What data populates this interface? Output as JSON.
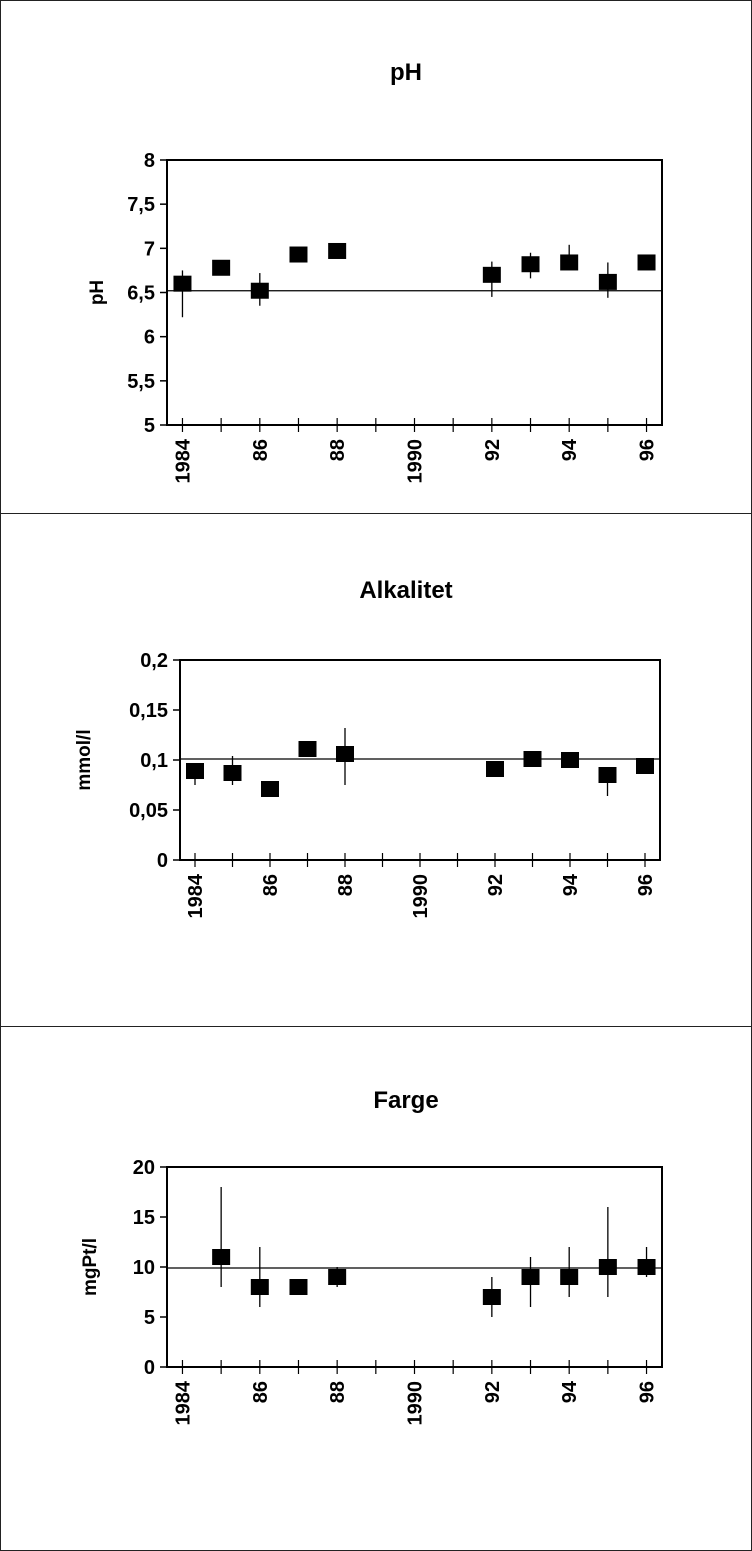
{
  "chart_data": [
    {
      "type": "scatter",
      "title": "pH",
      "ylabel": "pH",
      "xlabel": "",
      "ylim": [
        5,
        8
      ],
      "xlim": [
        1983.6,
        1996.4
      ],
      "yticks": [
        "5",
        "5,5",
        "6",
        "6,5",
        "7",
        "7,5",
        "8"
      ],
      "ytick_values": [
        5,
        5.5,
        6,
        6.5,
        7,
        7.5,
        8
      ],
      "xticks": [
        "1984",
        "86",
        "88",
        "1990",
        "92",
        "94",
        "96"
      ],
      "xtick_values": [
        1984,
        1986,
        1988,
        1990,
        1992,
        1994,
        1996
      ],
      "reference_line": 6.52,
      "series": [
        {
          "x": [
            1984,
            1985,
            1986,
            1987,
            1988,
            1992,
            1993,
            1994,
            1995,
            1996
          ],
          "values": [
            6.6,
            6.78,
            6.52,
            6.93,
            6.97,
            6.7,
            6.82,
            6.84,
            6.62,
            6.84
          ],
          "err_low": [
            6.22,
            6.76,
            6.35,
            6.9,
            6.95,
            6.45,
            6.66,
            6.84,
            6.44,
            6.84
          ],
          "err_high": [
            6.75,
            6.82,
            6.72,
            6.95,
            6.99,
            6.85,
            6.95,
            7.04,
            6.84,
            6.86
          ]
        }
      ]
    },
    {
      "type": "scatter",
      "title": "Alkalitet",
      "ylabel": "mmol/l",
      "xlabel": "",
      "ylim": [
        0,
        0.2
      ],
      "xlim": [
        1983.6,
        1996.4
      ],
      "yticks": [
        "0",
        "0,05",
        "0,1",
        "0,15",
        "0,2"
      ],
      "ytick_values": [
        0,
        0.05,
        0.1,
        0.15,
        0.2
      ],
      "xticks": [
        "1984",
        "86",
        "88",
        "1990",
        "92",
        "94",
        "96"
      ],
      "xtick_values": [
        1984,
        1986,
        1988,
        1990,
        1992,
        1994,
        1996
      ],
      "reference_line": 0.101,
      "series": [
        {
          "x": [
            1984,
            1985,
            1986,
            1987,
            1988,
            1992,
            1993,
            1994,
            1995,
            1996
          ],
          "values": [
            0.089,
            0.087,
            0.071,
            0.111,
            0.106,
            0.091,
            0.101,
            0.1,
            0.085,
            0.094
          ],
          "err_low": [
            0.075,
            0.075,
            0.071,
            0.108,
            0.075,
            0.089,
            0.098,
            0.097,
            0.064,
            0.092
          ],
          "err_high": [
            0.092,
            0.104,
            0.073,
            0.114,
            0.132,
            0.093,
            0.104,
            0.104,
            0.09,
            0.096
          ]
        }
      ]
    },
    {
      "type": "scatter",
      "title": "Farge",
      "ylabel": "mgPt/l",
      "xlabel": "",
      "ylim": [
        0,
        20
      ],
      "xlim": [
        1983.6,
        1996.4
      ],
      "yticks": [
        "0",
        "5",
        "10",
        "15",
        "20"
      ],
      "ytick_values": [
        0,
        5,
        10,
        15,
        20
      ],
      "xticks": [
        "1984",
        "86",
        "88",
        "1990",
        "92",
        "94",
        "96"
      ],
      "xtick_values": [
        1984,
        1986,
        1988,
        1990,
        1992,
        1994,
        1996
      ],
      "reference_line": 9.9,
      "series": [
        {
          "x": [
            1985,
            1986,
            1987,
            1988,
            1992,
            1993,
            1994,
            1995,
            1996
          ],
          "values": [
            11,
            8,
            8,
            9,
            7,
            9,
            9,
            10,
            10
          ],
          "err_low": [
            8,
            6,
            7.5,
            8,
            5,
            6,
            7,
            7,
            9
          ],
          "err_high": [
            18,
            12,
            8.5,
            10,
            9,
            11,
            12,
            16,
            12
          ]
        }
      ]
    }
  ]
}
